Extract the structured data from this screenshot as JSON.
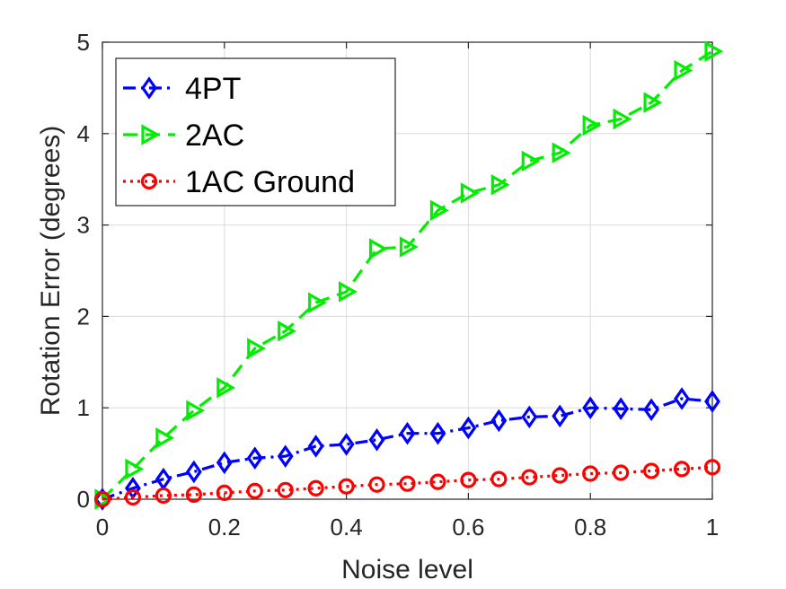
{
  "chart_data": {
    "type": "line",
    "title": "",
    "xlabel": "Noise level",
    "ylabel": "Rotation Error (degrees)",
    "xlim": [
      0,
      1
    ],
    "ylim": [
      0,
      5
    ],
    "grid": true,
    "legend_position": "top-left",
    "x": [
      0,
      0.05,
      0.1,
      0.15,
      0.2,
      0.25,
      0.3,
      0.35,
      0.4,
      0.45,
      0.5,
      0.55,
      0.6,
      0.65,
      0.7,
      0.75,
      0.8,
      0.85,
      0.9,
      0.95,
      1.0
    ],
    "x_ticks": [
      0,
      0.2,
      0.4,
      0.6,
      0.8,
      1
    ],
    "x_tick_labels": [
      "0",
      "0.2",
      "0.4",
      "0.6",
      "0.8",
      "1"
    ],
    "y_ticks": [
      0,
      1,
      2,
      3,
      4,
      5
    ],
    "y_tick_labels": [
      "0",
      "1",
      "2",
      "3",
      "4",
      "5"
    ],
    "series": [
      {
        "name": "4PT",
        "color": "#0000ff",
        "marker": "diamond",
        "line_style": "dash-dot",
        "values": [
          0.0,
          0.12,
          0.22,
          0.3,
          0.4,
          0.45,
          0.47,
          0.58,
          0.6,
          0.65,
          0.72,
          0.72,
          0.78,
          0.86,
          0.9,
          0.91,
          1.0,
          0.99,
          0.98,
          1.1,
          1.07
        ]
      },
      {
        "name": "2AC",
        "color": "#00ee00",
        "marker": "triangle-right",
        "line_style": "dashed",
        "values": [
          0.0,
          0.33,
          0.67,
          0.97,
          1.22,
          1.65,
          1.84,
          2.15,
          2.27,
          2.74,
          2.76,
          3.16,
          3.35,
          3.44,
          3.7,
          3.79,
          4.09,
          4.16,
          4.34,
          4.69,
          4.9
        ]
      },
      {
        "name": "1AC Ground",
        "color": "#ff0000",
        "marker": "circle",
        "line_style": "dotted",
        "values": [
          0.0,
          0.02,
          0.04,
          0.05,
          0.07,
          0.09,
          0.1,
          0.12,
          0.14,
          0.16,
          0.17,
          0.19,
          0.21,
          0.22,
          0.24,
          0.26,
          0.28,
          0.29,
          0.31,
          0.33,
          0.35
        ]
      }
    ]
  }
}
